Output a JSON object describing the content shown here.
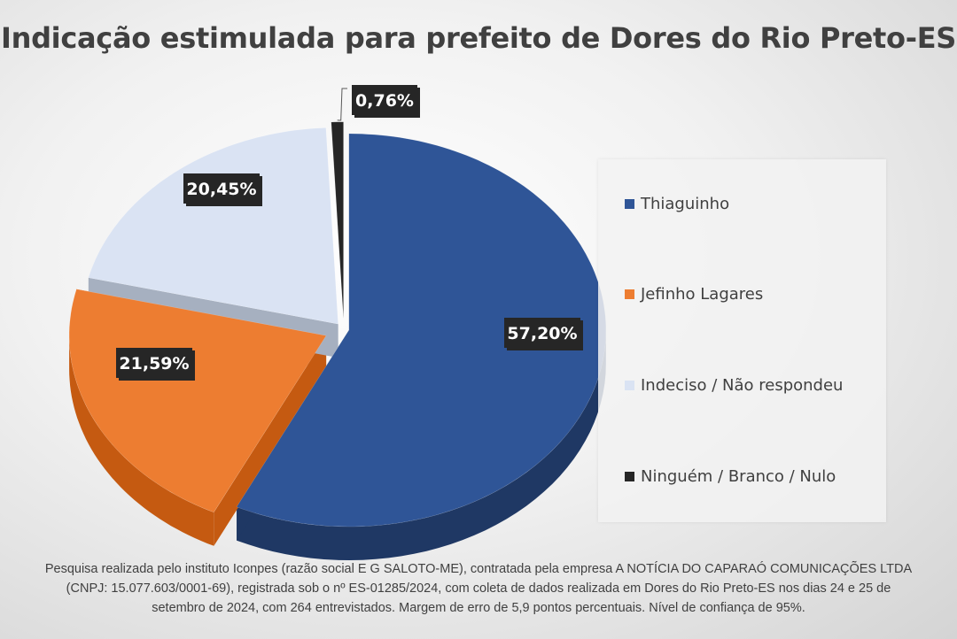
{
  "chart_data": {
    "type": "pie",
    "title": "Indicação estimulada para prefeito de Dores do Rio Preto-ES",
    "categories": [
      "Thiaguinho",
      "Jefinho Lagares",
      "Indeciso / Não respondeu",
      "Ninguém / Branco / Nulo"
    ],
    "values": [
      57.2,
      21.59,
      20.45,
      0.76
    ],
    "data_labels": [
      "57,20%",
      "21,59%",
      "20,45%",
      "0,76%"
    ],
    "colors": [
      "#2f5597",
      "#ed7d31",
      "#dae3f3",
      "#262626"
    ],
    "side_colors": [
      "#1f3864",
      "#c55a11",
      "#a6b0c0",
      "#111111"
    ],
    "style": "3d-exploded",
    "legend_position": "right"
  },
  "footnote": {
    "line1": "Pesquisa realizada pelo instituto Iconpes (razão social E G SALOTO-ME), contratada pela empresa A NOTÍCIA DO CAPARAÓ COMUNICAÇÕES LTDA",
    "line2": "(CNPJ: 15.077.603/0001-69), registrada sob o nº ES-01285/2024, com coleta de dados realizada em Dores do Rio Preto-ES nos dias 24 e 25 de",
    "line3": "setembro de 2024, com 264 entrevistados. Margem de erro de 5,9 pontos percentuais. Nível de confiança de 95%."
  }
}
